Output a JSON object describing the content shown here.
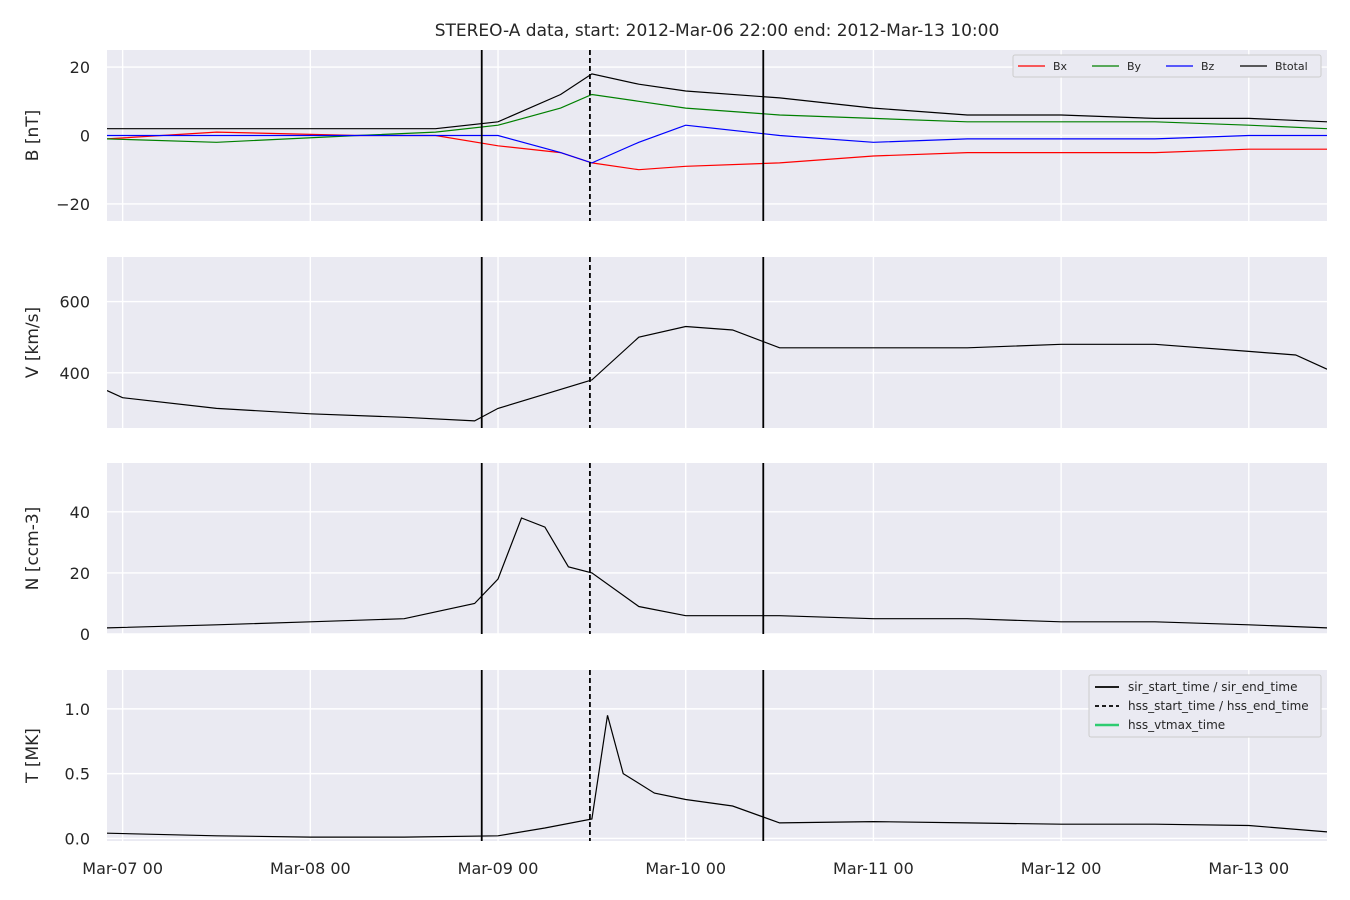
{
  "figure_title": "STEREO-A data, start: 2012-Mar-06 22:00  end: 2012-Mar-13 10:00",
  "colors": {
    "panel_bg": "#eaeaf2",
    "grid": "#ffffff",
    "bx": "#ff0000",
    "by": "#008000",
    "bz": "#0000ff",
    "btotal": "#000000",
    "data_line": "#000000",
    "hss_vtmax": "#2ecc71"
  },
  "chart_data": [
    {
      "type": "line",
      "name": "magnetic-field",
      "ylabel": "B [nT]",
      "xlim": [
        "2012-03-06 22:00",
        "2012-03-13 10:00"
      ],
      "ylim": [
        -25,
        25
      ],
      "yticks": [
        -20,
        0,
        20
      ],
      "yticklabels": [
        "−20",
        "0",
        "20"
      ],
      "grid": true,
      "legend": {
        "placement": "top-right",
        "entries": [
          "Bx",
          "By",
          "Bz",
          "Btotal"
        ]
      },
      "series": [
        {
          "name": "Bx",
          "color": "#ff0000",
          "times": [
            "2012-03-06 22:00",
            "2012-03-07 12:00",
            "2012-03-08 06:00",
            "2012-03-08 16:00",
            "2012-03-09 00:00",
            "2012-03-09 08:00",
            "2012-03-09 12:00",
            "2012-03-09 18:00",
            "2012-03-10 00:00",
            "2012-03-10 12:00",
            "2012-03-11 00:00",
            "2012-03-11 12:00",
            "2012-03-12 00:00",
            "2012-03-12 12:00",
            "2012-03-13 00:00",
            "2012-03-13 10:00"
          ],
          "values": [
            -1,
            1,
            0,
            0,
            -3,
            -5,
            -8,
            -10,
            -9,
            -8,
            -6,
            -5,
            -5,
            -5,
            -4,
            -4
          ]
        },
        {
          "name": "By",
          "color": "#008000",
          "times": [
            "2012-03-06 22:00",
            "2012-03-07 12:00",
            "2012-03-08 06:00",
            "2012-03-08 16:00",
            "2012-03-09 00:00",
            "2012-03-09 08:00",
            "2012-03-09 12:00",
            "2012-03-09 18:00",
            "2012-03-10 00:00",
            "2012-03-10 12:00",
            "2012-03-11 00:00",
            "2012-03-11 12:00",
            "2012-03-12 00:00",
            "2012-03-12 12:00",
            "2012-03-13 00:00",
            "2012-03-13 10:00"
          ],
          "values": [
            -1,
            -2,
            0,
            1,
            3,
            8,
            12,
            10,
            8,
            6,
            5,
            4,
            4,
            4,
            3,
            2
          ]
        },
        {
          "name": "Bz",
          "color": "#0000ff",
          "times": [
            "2012-03-06 22:00",
            "2012-03-07 12:00",
            "2012-03-08 06:00",
            "2012-03-08 16:00",
            "2012-03-09 00:00",
            "2012-03-09 08:00",
            "2012-03-09 12:00",
            "2012-03-09 18:00",
            "2012-03-10 00:00",
            "2012-03-10 12:00",
            "2012-03-11 00:00",
            "2012-03-11 12:00",
            "2012-03-12 00:00",
            "2012-03-12 12:00",
            "2012-03-13 00:00",
            "2012-03-13 10:00"
          ],
          "values": [
            0,
            0,
            0,
            0,
            0,
            -5,
            -8,
            -2,
            3,
            0,
            -2,
            -1,
            -1,
            -1,
            0,
            0
          ]
        },
        {
          "name": "Btotal",
          "color": "#000000",
          "times": [
            "2012-03-06 22:00",
            "2012-03-07 12:00",
            "2012-03-08 06:00",
            "2012-03-08 16:00",
            "2012-03-09 00:00",
            "2012-03-09 08:00",
            "2012-03-09 12:00",
            "2012-03-09 18:00",
            "2012-03-10 00:00",
            "2012-03-10 12:00",
            "2012-03-11 00:00",
            "2012-03-11 12:00",
            "2012-03-12 00:00",
            "2012-03-12 12:00",
            "2012-03-13 00:00",
            "2012-03-13 10:00"
          ],
          "values": [
            2,
            2,
            2,
            2,
            4,
            12,
            18,
            15,
            13,
            11,
            8,
            6,
            6,
            5,
            5,
            4
          ]
        }
      ]
    },
    {
      "type": "line",
      "name": "velocity",
      "ylabel": "V [km/s]",
      "xlim": [
        "2012-03-06 22:00",
        "2012-03-13 10:00"
      ],
      "ylim": [
        245,
        725
      ],
      "yticks": [
        400,
        600
      ],
      "yticklabels": [
        "400",
        "600"
      ],
      "grid": true,
      "series": [
        {
          "name": "V",
          "color": "#000000",
          "times": [
            "2012-03-06 22:00",
            "2012-03-07 00:00",
            "2012-03-07 12:00",
            "2012-03-08 00:00",
            "2012-03-08 12:00",
            "2012-03-08 21:00",
            "2012-03-09 00:00",
            "2012-03-09 06:00",
            "2012-03-09 12:00",
            "2012-03-09 18:00",
            "2012-03-10 00:00",
            "2012-03-10 06:00",
            "2012-03-10 12:00",
            "2012-03-11 00:00",
            "2012-03-11 12:00",
            "2012-03-12 00:00",
            "2012-03-12 12:00",
            "2012-03-13 00:00",
            "2012-03-13 06:00",
            "2012-03-13 10:00"
          ],
          "values": [
            350,
            330,
            300,
            285,
            275,
            265,
            300,
            340,
            380,
            500,
            530,
            520,
            470,
            470,
            470,
            480,
            480,
            460,
            450,
            410
          ]
        }
      ]
    },
    {
      "type": "line",
      "name": "density",
      "ylabel": "N [ccm-3]",
      "xlim": [
        "2012-03-06 22:00",
        "2012-03-13 10:00"
      ],
      "ylim": [
        0,
        56
      ],
      "yticks": [
        0,
        20,
        40
      ],
      "yticklabels": [
        "0",
        "20",
        "40"
      ],
      "grid": true,
      "series": [
        {
          "name": "N",
          "color": "#000000",
          "times": [
            "2012-03-06 22:00",
            "2012-03-07 12:00",
            "2012-03-08 00:00",
            "2012-03-08 12:00",
            "2012-03-08 21:00",
            "2012-03-09 00:00",
            "2012-03-09 03:00",
            "2012-03-09 06:00",
            "2012-03-09 09:00",
            "2012-03-09 12:00",
            "2012-03-09 18:00",
            "2012-03-10 00:00",
            "2012-03-10 12:00",
            "2012-03-11 00:00",
            "2012-03-11 12:00",
            "2012-03-12 00:00",
            "2012-03-12 12:00",
            "2012-03-13 00:00",
            "2012-03-13 10:00"
          ],
          "values": [
            2,
            3,
            4,
            5,
            10,
            18,
            38,
            35,
            22,
            20,
            9,
            6,
            6,
            5,
            5,
            4,
            4,
            3,
            2
          ]
        }
      ]
    },
    {
      "type": "line",
      "name": "temperature",
      "ylabel": "T [MK]",
      "xlim": [
        "2012-03-06 22:00",
        "2012-03-13 10:00"
      ],
      "ylim": [
        -0.02,
        1.3
      ],
      "yticks": [
        0.0,
        0.5,
        1.0
      ],
      "yticklabels": [
        "0.0",
        "0.5",
        "1.0"
      ],
      "grid": true,
      "legend": {
        "placement": "top-right",
        "entries": [
          "sir_start_time / sir_end_time",
          "hss_start_time / hss_end_time",
          "hss_vtmax_time"
        ]
      },
      "series": [
        {
          "name": "T",
          "color": "#000000",
          "times": [
            "2012-03-06 22:00",
            "2012-03-07 12:00",
            "2012-03-08 00:00",
            "2012-03-08 12:00",
            "2012-03-09 00:00",
            "2012-03-09 06:00",
            "2012-03-09 12:00",
            "2012-03-09 14:00",
            "2012-03-09 16:00",
            "2012-03-09 20:00",
            "2012-03-10 00:00",
            "2012-03-10 06:00",
            "2012-03-10 12:00",
            "2012-03-11 00:00",
            "2012-03-11 12:00",
            "2012-03-12 00:00",
            "2012-03-12 12:00",
            "2012-03-13 00:00",
            "2012-03-13 10:00"
          ],
          "values": [
            0.04,
            0.02,
            0.01,
            0.01,
            0.02,
            0.08,
            0.15,
            0.95,
            0.5,
            0.35,
            0.3,
            0.25,
            0.12,
            0.13,
            0.12,
            0.11,
            0.11,
            0.1,
            0.05
          ]
        }
      ]
    }
  ],
  "event_lines": [
    {
      "label": "sir_start_time / sir_end_time",
      "style": "solid",
      "times": [
        "2012-03-08 21:55",
        "2012-03-10 09:55"
      ]
    },
    {
      "label": "hss_start_time / hss_end_time",
      "style": "dashed",
      "times": [
        "2012-03-09 11:45"
      ]
    },
    {
      "label": "hss_vtmax_time",
      "style": "solid",
      "color": "#2ecc71",
      "times": []
    }
  ],
  "x_axis": {
    "tick_times": [
      "2012-03-07 00:00",
      "2012-03-08 00:00",
      "2012-03-09 00:00",
      "2012-03-10 00:00",
      "2012-03-11 00:00",
      "2012-03-12 00:00",
      "2012-03-13 00:00"
    ],
    "tick_labels": [
      "Mar-07 00",
      "Mar-08 00",
      "Mar-09 00",
      "Mar-10 00",
      "Mar-11 00",
      "Mar-12 00",
      "Mar-13 00"
    ]
  }
}
